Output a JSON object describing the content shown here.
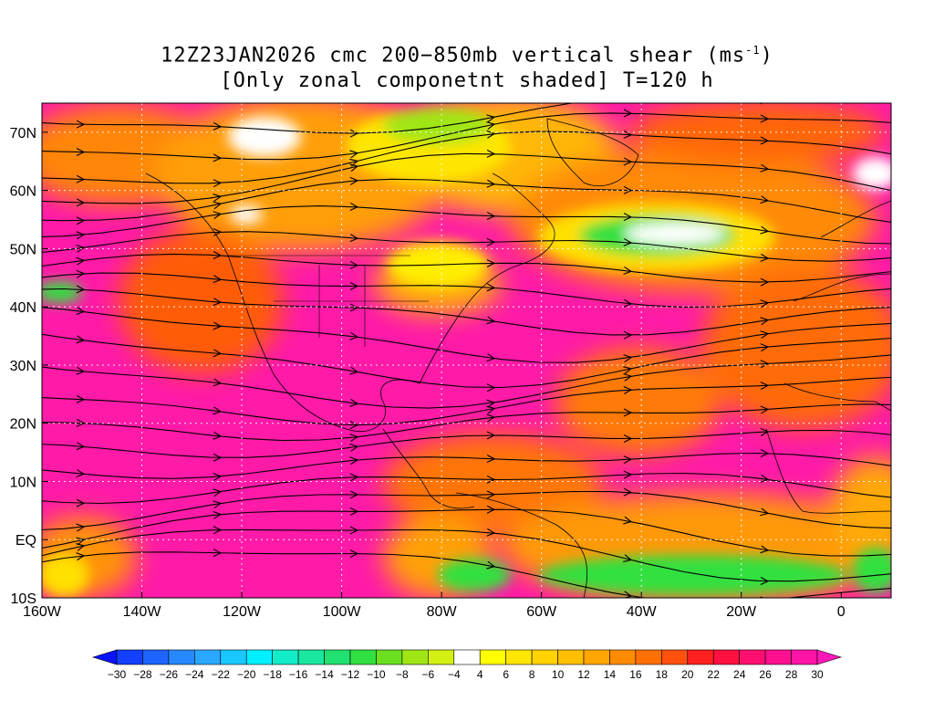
{
  "title": {
    "line1_prefix": "12Z23JAN2026 cmc 200−850mb vertical shear (ms",
    "line1_sup": "-1",
    "line1_suffix": ")",
    "line2": "[Only zonal componetnt shaded] T=120 h"
  },
  "map": {
    "lon_range": [
      -160,
      10
    ],
    "lat_range": [
      -10,
      75
    ],
    "lat_ticks": [
      {
        "lat": 70,
        "label": "70N"
      },
      {
        "lat": 60,
        "label": "60N"
      },
      {
        "lat": 50,
        "label": "50N"
      },
      {
        "lat": 40,
        "label": "40N"
      },
      {
        "lat": 30,
        "label": "30N"
      },
      {
        "lat": 20,
        "label": "20N"
      },
      {
        "lat": 10,
        "label": "10N"
      },
      {
        "lat": 0,
        "label": "EQ"
      },
      {
        "lat": -10,
        "label": "10S"
      }
    ],
    "lon_ticks": [
      {
        "lon": -160,
        "label": "160W"
      },
      {
        "lon": -140,
        "label": "140W"
      },
      {
        "lon": -120,
        "label": "120W"
      },
      {
        "lon": -100,
        "label": "100W"
      },
      {
        "lon": -80,
        "label": "80W"
      },
      {
        "lon": -60,
        "label": "60W"
      },
      {
        "lon": -40,
        "label": "40W"
      },
      {
        "lon": -20,
        "label": "20W"
      },
      {
        "lon": 0,
        "label": "0"
      }
    ],
    "grid": "dotted",
    "background_color": "#ff1aa8"
  },
  "colorbar": {
    "labels": [
      "-30",
      "-28",
      "-26",
      "-24",
      "-22",
      "-20",
      "-18",
      "-16",
      "-14",
      "-12",
      "-10",
      "-8",
      "-6",
      "-4",
      "4",
      "6",
      "8",
      "10",
      "12",
      "14",
      "16",
      "18",
      "20",
      "22",
      "24",
      "26",
      "28",
      "30"
    ],
    "colors": [
      "#0a14ff",
      "#1440ff",
      "#1e64ff",
      "#2888ff",
      "#2aa8ff",
      "#18c8ff",
      "#00f0ff",
      "#12ecc8",
      "#1ae8a0",
      "#20e070",
      "#30e040",
      "#6ae020",
      "#a0e614",
      "#d2f014",
      "#ffffff",
      "#ffff00",
      "#ffe600",
      "#ffd200",
      "#ffbe00",
      "#ffa600",
      "#ff8c00",
      "#ff7000",
      "#ff5010",
      "#ff2020",
      "#ff1040",
      "#ff1070",
      "#ff1090",
      "#ff14a8",
      "#ff18b8"
    ]
  }
}
